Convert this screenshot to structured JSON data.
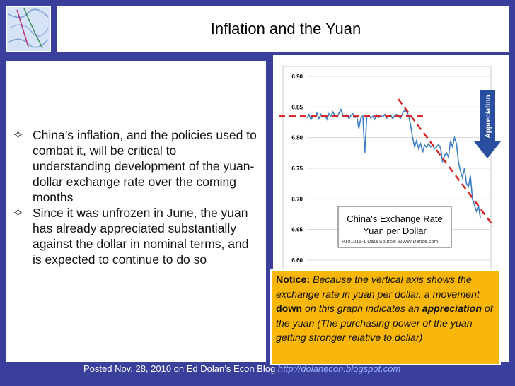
{
  "slide": {
    "title": "Inflation and the Yuan",
    "bullets": [
      "China’s inflation, and the policies used to combat it, will be critical to understanding development of the yuan-dollar exchange rate over the coming months",
      "Since it was unfrozen in June, the yuan has already appreciated substantially against the dollar in nominal terms, and is expected to continue to do so"
    ],
    "bullet_glyph": "✧"
  },
  "note": {
    "lead": "Notice:",
    "t1": " Because the vertical axis shows the exchange rate in yuan per dollar, a movement ",
    "down": "down",
    "t2": " on this graph indicates an ",
    "appreciation": "appreciation",
    "t3": " of the yuan (The purchasing power of the yuan getting stronger relative to dollar)"
  },
  "footer": {
    "text": "Posted Nov. 28, 2010 on Ed Dolan’s Econ Blog ",
    "url": "http://dolanecon.blogspot.com"
  },
  "chart_data": {
    "type": "line",
    "title": "China's Exchange Rate",
    "subtitle": "Yuan per Dollar",
    "source": "P101015-1 Data Source: WWW.Dande.com",
    "yticks": [
      "6.90",
      "6.85",
      "6.80",
      "6.75",
      "6.70",
      "6.65",
      "6.60"
    ],
    "ylim": [
      6.58,
      6.9
    ],
    "arrow_label": "Appreciation",
    "colors": {
      "series": "#3d7fc4",
      "trend": "#d82020",
      "arrow": "#2a4ea0"
    },
    "series": [
      {
        "values": [
          6.832,
          6.838,
          6.829,
          6.836,
          6.834,
          6.84,
          6.831,
          6.838,
          6.833,
          6.837,
          6.83,
          6.839,
          6.835,
          6.842,
          6.836,
          6.833,
          6.84,
          6.846,
          6.837,
          6.834,
          6.838,
          6.831,
          6.836,
          6.839,
          6.833,
          6.835,
          6.815,
          6.832,
          6.836,
          6.775,
          6.834,
          6.837,
          6.832,
          6.835,
          6.83,
          6.837,
          6.833,
          6.836,
          6.834,
          6.838,
          6.832,
          6.835,
          6.837,
          6.831,
          6.836,
          6.838,
          6.834,
          6.832,
          6.84,
          6.845,
          6.842,
          6.836,
          6.82,
          6.8,
          6.785,
          6.795,
          6.782,
          6.79,
          6.776,
          6.788,
          6.784,
          6.79,
          6.785,
          6.788,
          6.782,
          6.785,
          6.789,
          6.783,
          6.76,
          6.771,
          6.775,
          6.768,
          6.795,
          6.785,
          6.8,
          6.79,
          6.76,
          6.745,
          6.735,
          6.75,
          6.725,
          6.72,
          6.738,
          6.7,
          6.69,
          6.68,
          6.69,
          6.668
        ]
      }
    ],
    "trend_lines": [
      {
        "label": "flat",
        "from": [
          0,
          6.835
        ],
        "to": [
          95,
          6.835
        ]
      },
      {
        "label": "falling",
        "from": [
          50,
          6.863
        ],
        "to": [
          100,
          6.655
        ]
      }
    ]
  }
}
